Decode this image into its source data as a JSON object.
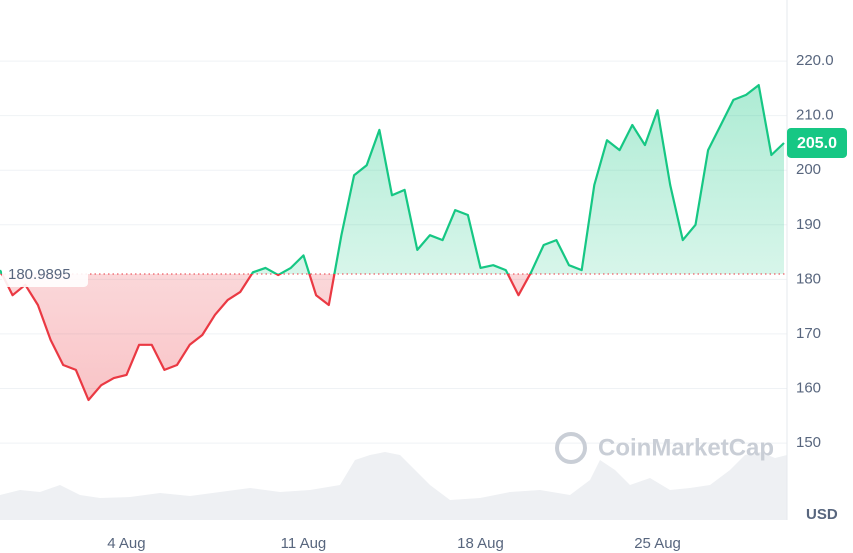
{
  "chart_data": {
    "type": "line",
    "categories": [
      null,
      null,
      null,
      null,
      null,
      null,
      null,
      null,
      null,
      null,
      "4 Aug",
      null,
      null,
      null,
      null,
      null,
      null,
      null,
      null,
      null,
      null,
      null,
      null,
      null,
      "11 Aug",
      null,
      null,
      null,
      null,
      null,
      null,
      null,
      null,
      null,
      null,
      null,
      null,
      null,
      "18 Aug",
      null,
      null,
      null,
      null,
      null,
      null,
      null,
      null,
      null,
      null,
      null,
      null,
      null,
      "25 Aug",
      null,
      null,
      null,
      null,
      null,
      null,
      null,
      null,
      null,
      null
    ],
    "values": [
      181.7,
      177.1,
      179,
      175.3,
      168.9,
      164.3,
      163.4,
      157.9,
      160.6,
      161.9,
      162.5,
      168,
      168,
      163.4,
      164.3,
      168,
      169.8,
      173.5,
      176.2,
      177.7,
      181.3,
      182.1,
      180.8,
      182.1,
      184.4,
      177.1,
      175.3,
      188.1,
      199.1,
      200.9,
      207.4,
      195.4,
      196.4,
      185.4,
      188.1,
      187.2,
      192.7,
      191.8,
      182.1,
      182.6,
      181.7,
      177.1,
      181.3,
      186.3,
      187.2,
      182.6,
      181.7,
      197.3,
      205.5,
      203.7,
      208.3,
      204.6,
      211,
      197.3,
      187.2,
      190,
      203.7,
      208.3,
      212.9,
      213.8,
      215.6,
      202.8,
      205.0
    ],
    "color_up": "#16c784",
    "color_down": "#ea3943",
    "baseline": 180.9895,
    "current_price": {
      "value": 205.0,
      "label": "205.0"
    },
    "ylim": [
      135.9,
      231.2
    ],
    "yticks": [
      {
        "value": 220,
        "label": "220.0"
      },
      {
        "value": 210,
        "label": "210.0"
      },
      200,
      190,
      180,
      170,
      160,
      150
    ],
    "grid": true,
    "y_unit": "USD",
    "watermark": "CoinMarketCap"
  }
}
